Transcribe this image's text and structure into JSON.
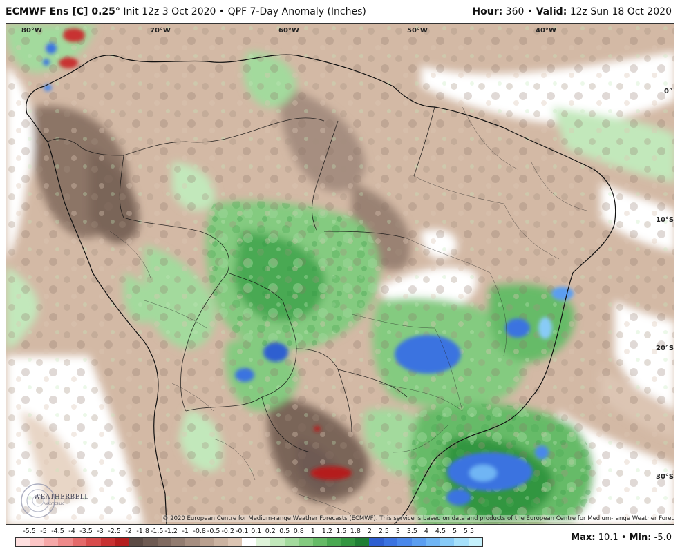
{
  "header": {
    "model": "ECMWF Ens [C] 0.25",
    "degree": "°",
    "init": "Init 12z 3 Oct 2020",
    "bullet": "•",
    "product": "QPF 7-Day Anomaly (Inches)",
    "hour_label": "Hour:",
    "hour_value": "360",
    "valid_label": "Valid:",
    "valid_value": "12z Sun 18 Oct 2020"
  },
  "map": {
    "region": "South America",
    "lon_labels": [
      "80°W",
      "70°W",
      "60°W",
      "50°W",
      "40°W"
    ],
    "lat_labels": [
      "0°",
      "10°S",
      "20°S",
      "30°S"
    ],
    "copyright": "© 2020 European Centre for Medium-range Weather Forecasts (ECMWF). This service is based on data and products of the European Centre for Medium-range Weather Forecasts (ECMWF).",
    "logo_text": "WEATHERBELL",
    "logo_sub": "ANALYTICS LLC"
  },
  "colorbar": {
    "labels": [
      "-5.5",
      "-5",
      "-4.5",
      "-4",
      "-3.5",
      "-3",
      "-2.5",
      "-2",
      "-1.8",
      "-1.5",
      "-1.2",
      "-1",
      "-0.8",
      "-0.5",
      "-0.2",
      "-0.1",
      "0.1",
      "0.2",
      "0.5",
      "0.8",
      "1",
      "1.2",
      "1.5",
      "1.8",
      "2",
      "2.5",
      "3",
      "3.5",
      "4",
      "4.5",
      "5",
      "5.5"
    ],
    "colors": [
      "#ffe0e0",
      "#fcc6c6",
      "#f6a8a8",
      "#ee8a8a",
      "#e46a6a",
      "#d84c4c",
      "#c83232",
      "#b41e1e",
      "#5c4a44",
      "#6e5a52",
      "#806a60",
      "#927c70",
      "#a68e80",
      "#b9a08f",
      "#cbb3a1",
      "#dcc5b3",
      "#ffffff",
      "#dff3d9",
      "#c2e8bb",
      "#a3da9d",
      "#84cb80",
      "#66bb67",
      "#4aa952",
      "#339641",
      "#1f7f35",
      "#2e5fd0",
      "#3b73e0",
      "#4a88ea",
      "#5b9ef0",
      "#70b5f4",
      "#88cbf7",
      "#a6e0fa",
      "#c5f1fc"
    ],
    "label_fit_hint": ""
  },
  "stats": {
    "max_label": "Max:",
    "max_value": "10.1",
    "min_label": "Min:",
    "min_value": "-5.0"
  }
}
